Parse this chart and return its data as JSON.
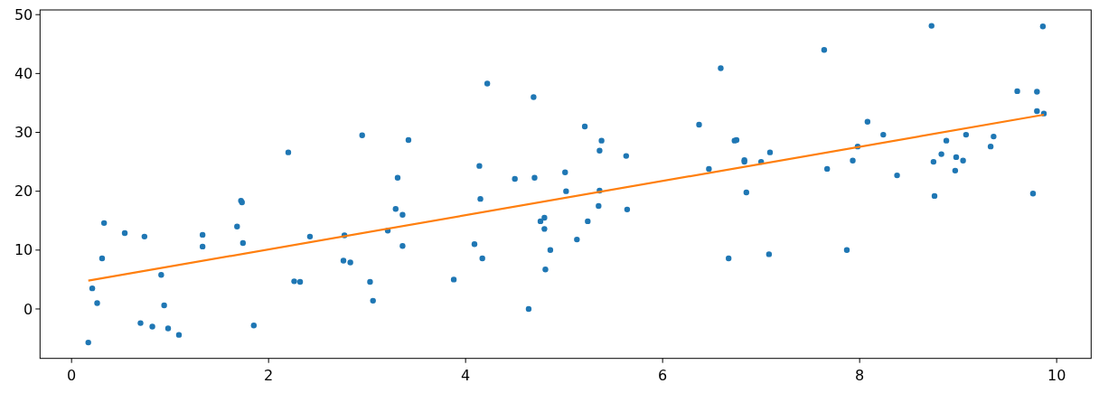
{
  "chart_data": {
    "type": "scatter",
    "xlim": [
      -0.32,
      10.35
    ],
    "ylim": [
      -8.4,
      50.8
    ],
    "xticks": [
      0,
      2,
      4,
      6,
      8,
      10
    ],
    "yticks": [
      0,
      10,
      20,
      30,
      40,
      50
    ],
    "grid": false,
    "series": [
      {
        "marker": "circle",
        "color": "#1f77b4",
        "x": [
          0.17,
          0.21,
          0.26,
          0.31,
          0.33,
          0.54,
          0.7,
          0.74,
          0.82,
          0.91,
          0.94,
          0.98,
          1.09,
          1.33,
          1.33,
          1.68,
          1.72,
          1.73,
          1.74,
          1.85,
          2.2,
          2.26,
          2.32,
          2.42,
          2.76,
          2.77,
          2.83,
          2.95,
          3.03,
          3.06,
          3.21,
          3.29,
          3.31,
          3.36,
          3.36,
          3.42,
          3.88,
          4.09,
          4.14,
          4.15,
          4.17,
          4.22,
          4.5,
          4.64,
          4.69,
          4.7,
          4.76,
          4.8,
          4.8,
          4.81,
          4.86,
          5.01,
          5.02,
          5.13,
          5.21,
          5.24,
          5.35,
          5.36,
          5.36,
          5.38,
          5.63,
          5.64,
          6.37,
          6.47,
          6.59,
          6.67,
          6.73,
          6.75,
          6.83,
          6.83,
          6.85,
          7.0,
          7.08,
          7.09,
          7.64,
          7.67,
          7.87,
          7.93,
          7.98,
          8.08,
          8.24,
          8.38,
          8.73,
          8.75,
          8.76,
          8.83,
          8.88,
          8.97,
          8.98,
          9.05,
          9.08,
          9.33,
          9.36,
          9.6,
          9.76,
          9.8,
          9.8,
          9.86,
          9.87
        ],
        "values": [
          -5.7,
          3.5,
          1.0,
          8.6,
          14.6,
          12.9,
          -2.4,
          12.3,
          -3.0,
          5.8,
          0.6,
          -3.3,
          -4.4,
          12.6,
          10.6,
          14.0,
          18.4,
          18.1,
          11.2,
          -2.8,
          26.6,
          4.7,
          4.6,
          12.3,
          8.2,
          12.5,
          7.9,
          29.5,
          4.6,
          1.4,
          13.3,
          17.0,
          22.3,
          16.0,
          10.7,
          28.7,
          5.0,
          11.0,
          24.3,
          18.7,
          8.6,
          38.3,
          22.1,
          0.0,
          36.0,
          22.3,
          14.9,
          15.5,
          13.6,
          6.7,
          10.0,
          23.2,
          20.0,
          11.8,
          31.0,
          14.9,
          17.5,
          26.9,
          20.1,
          28.6,
          26.0,
          16.9,
          31.3,
          23.8,
          40.9,
          8.6,
          28.6,
          28.7,
          25.3,
          25.0,
          19.8,
          25.0,
          9.3,
          26.6,
          44.0,
          23.8,
          10.0,
          25.2,
          27.6,
          31.8,
          29.6,
          22.7,
          48.1,
          25.0,
          19.2,
          26.3,
          28.6,
          23.5,
          25.8,
          25.2,
          29.6,
          27.6,
          29.3,
          37.0,
          19.6,
          36.9,
          33.6,
          48.0,
          33.2
        ]
      },
      {
        "type": "line",
        "marker": "none",
        "color": "#ff7f0e",
        "x": [
          0.17,
          9.87
        ],
        "values": [
          4.8,
          33.0
        ]
      }
    ]
  }
}
